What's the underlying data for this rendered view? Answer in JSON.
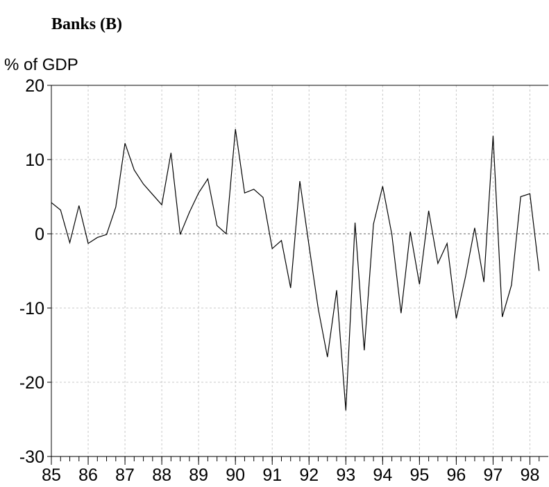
{
  "chart_data": {
    "type": "line",
    "title": "Banks (B)",
    "y_label": "% of GDP",
    "x": [
      85,
      85.25,
      85.5,
      85.75,
      86,
      86.25,
      86.5,
      86.75,
      87,
      87.25,
      87.5,
      87.75,
      88,
      88.25,
      88.5,
      88.75,
      89,
      89.25,
      89.5,
      89.75,
      90,
      90.25,
      90.5,
      90.75,
      91,
      91.25,
      91.5,
      91.75,
      92,
      92.25,
      92.5,
      92.75,
      93,
      93.25,
      93.5,
      93.75,
      94,
      94.25,
      94.5,
      94.75,
      95,
      95.25,
      95.5,
      95.75,
      96,
      96.25,
      96.5,
      96.75,
      97,
      97.25,
      97.5,
      97.75,
      98,
      98.25
    ],
    "series": [
      {
        "color": "#000000",
        "values": [
          4.2,
          3.2,
          -1.2,
          3.8,
          -1.3,
          -0.5,
          -0.1,
          3.6,
          12.2,
          8.6,
          6.7,
          5.3,
          3.9,
          10.9,
          -0.1,
          2.9,
          5.5,
          7.4,
          1.1,
          0.0,
          14.1,
          5.5,
          6.0,
          4.9,
          -2.0,
          -0.9,
          -7.3,
          7.1,
          -1.6,
          -10.1,
          -16.6,
          -7.6,
          -23.8,
          1.5,
          -15.7,
          1.3,
          6.4,
          -0.1,
          -10.7,
          0.3,
          -6.8,
          3.1,
          -4.0,
          -1.3,
          -11.4,
          -5.8,
          0.8,
          -6.5,
          13.2,
          -11.2,
          -6.9,
          5.0,
          5.4,
          -5.0
        ]
      }
    ],
    "xlim": [
      85,
      98.5
    ],
    "xticks": [
      85,
      86,
      87,
      88,
      89,
      90,
      91,
      92,
      93,
      94,
      95,
      96,
      97,
      98
    ],
    "ylim": [
      -30,
      20
    ],
    "yticks": [
      -30,
      -20,
      -10,
      0,
      10,
      20
    ],
    "grid": true
  }
}
